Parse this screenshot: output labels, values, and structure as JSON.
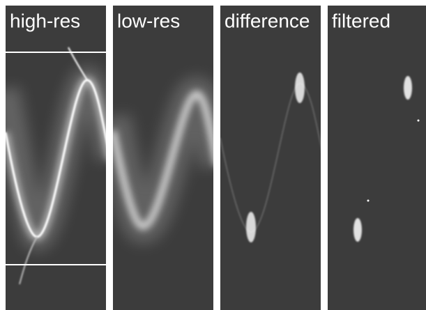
{
  "panels": [
    {
      "label": "high-res"
    },
    {
      "label": "low-res"
    },
    {
      "label": "difference"
    },
    {
      "label": "filtered"
    }
  ]
}
